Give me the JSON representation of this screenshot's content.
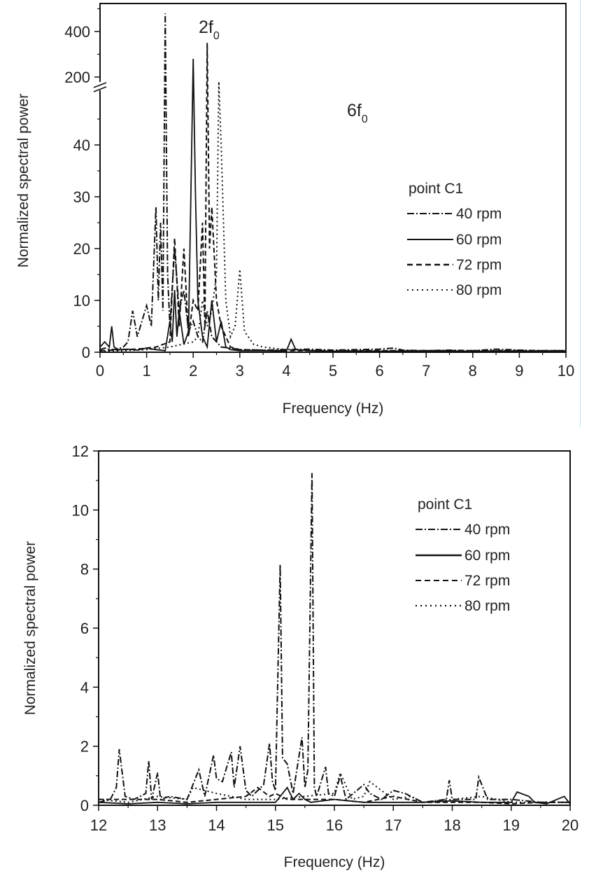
{
  "chart_data": [
    {
      "type": "line",
      "title": "",
      "xlabel": "Frequency (Hz)",
      "ylabel": "Normalized spectral power",
      "xlim": [
        0,
        10
      ],
      "ylim": [
        0,
        500
      ],
      "y_axis_break": {
        "lower_range": [
          0,
          50
        ],
        "upper_range": [
          150,
          500
        ]
      },
      "xticks": [
        "0",
        "1",
        "2",
        "3",
        "4",
        "5",
        "6",
        "7",
        "8",
        "9",
        "10"
      ],
      "yticks_lower": [
        "0",
        "10",
        "20",
        "30",
        "40"
      ],
      "yticks_upper": [
        "200",
        "400"
      ],
      "grid": false,
      "legend_title": "point C1",
      "legend_position": "right-middle",
      "annotations": [
        {
          "text": "2f",
          "sub": "0",
          "x": 2.2,
          "y": 430
        },
        {
          "text": "6f",
          "sub": "0",
          "x": 5.1,
          "y": 45
        }
      ],
      "series": [
        {
          "name": "40 rpm",
          "style": "dash-dot",
          "x": [
            0.0,
            0.1,
            0.2,
            0.3,
            0.4,
            0.5,
            0.6,
            0.7,
            0.8,
            0.9,
            1.0,
            1.1,
            1.2,
            1.25,
            1.3,
            1.35,
            1.4,
            1.45,
            1.5,
            1.6,
            1.7,
            1.8,
            1.9,
            2.0,
            2.1,
            2.2,
            2.3,
            2.4,
            2.5,
            2.6,
            2.8,
            3.0,
            3.5,
            4.0,
            4.5,
            5.0,
            5.5,
            6.0,
            6.3,
            6.5,
            7.0,
            7.5,
            8.0,
            8.5,
            9.0,
            9.5,
            10.0
          ],
          "y": [
            0.5,
            0.8,
            0.6,
            0.5,
            0.7,
            1.0,
            2.0,
            8.0,
            3.0,
            6.0,
            9.0,
            5.0,
            28.0,
            10.0,
            25.0,
            8.0,
            480.0,
            15.0,
            5.0,
            20.0,
            8.0,
            12.0,
            4.0,
            6.0,
            3.0,
            2.0,
            8.0,
            3.0,
            2.0,
            1.0,
            0.8,
            0.5,
            0.4,
            0.5,
            0.6,
            0.4,
            0.5,
            0.6,
            0.8,
            0.4,
            0.3,
            0.4,
            0.3,
            0.6,
            0.4,
            0.3,
            0.3
          ]
        },
        {
          "name": "60 rpm",
          "style": "solid",
          "x": [
            0.0,
            0.1,
            0.2,
            0.25,
            0.3,
            0.4,
            0.6,
            0.8,
            1.0,
            1.2,
            1.4,
            1.5,
            1.55,
            1.6,
            1.65,
            1.7,
            1.8,
            1.9,
            2.0,
            2.05,
            2.1,
            2.2,
            2.3,
            2.4,
            2.5,
            2.6,
            2.7,
            2.8,
            3.0,
            3.5,
            4.0,
            4.1,
            4.2,
            4.5,
            5.0,
            6.0,
            7.0,
            8.0,
            9.0,
            10.0
          ],
          "y": [
            1.0,
            2.0,
            1.0,
            5.0,
            1.0,
            0.5,
            0.6,
            0.4,
            0.8,
            0.5,
            0.3,
            6.0,
            2.0,
            12.0,
            3.0,
            8.0,
            1.5,
            4.0,
            280.0,
            30.0,
            10.0,
            3.0,
            1.0,
            10.0,
            2.0,
            6.0,
            1.0,
            0.5,
            0.3,
            0.3,
            0.2,
            2.5,
            0.5,
            0.3,
            0.2,
            0.2,
            0.2,
            0.2,
            0.2,
            0.2
          ]
        },
        {
          "name": "72 rpm",
          "style": "dashed",
          "x": [
            0.0,
            0.5,
            0.8,
            1.0,
            1.2,
            1.5,
            1.6,
            1.7,
            1.8,
            1.9,
            2.0,
            2.1,
            2.2,
            2.25,
            2.3,
            2.35,
            2.4,
            2.5,
            2.6,
            2.8,
            3.0,
            3.5,
            4.0,
            5.0,
            6.0,
            7.0,
            8.0,
            9.0,
            10.0
          ],
          "y": [
            0.3,
            0.5,
            0.6,
            0.8,
            1.0,
            2.0,
            22.0,
            5.0,
            20.0,
            3.0,
            10.0,
            8.0,
            25.0,
            5.0,
            350.0,
            20.0,
            28.0,
            10.0,
            5.0,
            1.0,
            0.5,
            0.4,
            0.3,
            0.3,
            0.3,
            0.3,
            0.3,
            0.3,
            0.3
          ]
        },
        {
          "name": "80 rpm",
          "style": "dotted",
          "x": [
            0.0,
            0.5,
            1.0,
            1.5,
            2.0,
            2.1,
            2.2,
            2.3,
            2.4,
            2.5,
            2.55,
            2.6,
            2.7,
            2.8,
            2.9,
            3.0,
            3.1,
            3.3,
            3.5,
            4.0,
            5.0,
            6.0,
            7.0,
            8.0,
            9.0,
            10.0
          ],
          "y": [
            0.2,
            0.3,
            0.5,
            1.0,
            2.0,
            3.0,
            10.0,
            5.0,
            8.0,
            15.0,
            180.0,
            40.0,
            10.0,
            3.0,
            5.0,
            16.0,
            4.0,
            1.5,
            1.0,
            0.5,
            0.3,
            0.3,
            0.3,
            0.3,
            0.3,
            0.3
          ]
        }
      ]
    },
    {
      "type": "line",
      "title": "",
      "xlabel": "Frequency (Hz)",
      "ylabel": "Normalized spectral power",
      "xlim": [
        12,
        20
      ],
      "ylim": [
        0,
        12
      ],
      "xticks": [
        "12",
        "13",
        "14",
        "15",
        "16",
        "17",
        "18",
        "19",
        "20"
      ],
      "yticks": [
        "0",
        "2",
        "4",
        "6",
        "8",
        "10",
        "12"
      ],
      "grid": false,
      "legend_title": "point C1",
      "legend_position": "upper-right",
      "series": [
        {
          "name": "40 rpm",
          "style": "dash-dot",
          "x": [
            12.0,
            12.2,
            12.3,
            12.35,
            12.45,
            12.6,
            12.8,
            12.85,
            12.9,
            13.0,
            13.05,
            13.2,
            13.5,
            13.7,
            13.8,
            13.95,
            14.0,
            14.1,
            14.25,
            14.3,
            14.4,
            14.5,
            14.6,
            14.8,
            14.9,
            14.95,
            15.0,
            15.08,
            15.12,
            15.2,
            15.3,
            15.45,
            15.5,
            15.55,
            15.62,
            15.66,
            15.7,
            15.85,
            15.9,
            16.0,
            16.1,
            16.2,
            16.5,
            16.6,
            16.8,
            17.0,
            17.2,
            17.5,
            17.9,
            17.95,
            18.0,
            18.2,
            18.4,
            18.45,
            18.6,
            19.0,
            19.5,
            20.0
          ],
          "y": [
            0.1,
            0.2,
            0.6,
            1.9,
            0.3,
            0.2,
            0.4,
            1.5,
            0.2,
            1.1,
            0.2,
            0.3,
            0.2,
            1.2,
            0.3,
            1.7,
            0.9,
            0.8,
            1.8,
            0.6,
            2.0,
            0.5,
            0.3,
            0.7,
            2.1,
            0.8,
            0.5,
            8.15,
            1.6,
            1.4,
            0.4,
            2.3,
            0.6,
            1.2,
            11.25,
            0.6,
            0.3,
            1.3,
            0.4,
            0.3,
            1.0,
            0.2,
            0.7,
            0.4,
            0.2,
            0.5,
            0.4,
            0.1,
            0.2,
            0.85,
            0.2,
            0.2,
            0.2,
            0.95,
            0.2,
            0.2,
            0.1,
            0.1
          ]
        },
        {
          "name": "60 rpm",
          "style": "solid",
          "x": [
            12.0,
            12.5,
            13.0,
            13.5,
            14.0,
            14.5,
            15.0,
            15.2,
            15.3,
            15.4,
            15.5,
            15.6,
            16.0,
            16.5,
            17.0,
            17.5,
            18.0,
            18.5,
            19.0,
            19.1,
            19.3,
            19.4,
            19.6,
            19.9,
            20.0
          ],
          "y": [
            0.1,
            0.05,
            0.1,
            0.05,
            0.1,
            0.1,
            0.1,
            0.6,
            0.2,
            0.4,
            0.2,
            0.1,
            0.2,
            0.1,
            0.1,
            0.1,
            0.15,
            0.1,
            0.1,
            0.45,
            0.3,
            0.1,
            0.05,
            0.3,
            0.05
          ]
        },
        {
          "name": "72 rpm",
          "style": "dashed",
          "x": [
            12.0,
            12.5,
            13.0,
            13.5,
            14.0,
            14.5,
            14.7,
            14.9,
            15.0,
            15.1,
            15.2,
            15.5,
            16.0,
            16.5,
            17.0,
            17.5,
            18.0,
            18.5,
            19.0,
            19.5,
            20.0
          ],
          "y": [
            0.2,
            0.2,
            0.2,
            0.1,
            0.2,
            0.3,
            0.6,
            0.3,
            0.4,
            0.3,
            0.2,
            0.2,
            0.2,
            0.1,
            0.3,
            0.1,
            0.1,
            0.1,
            0.05,
            0.1,
            0.1
          ]
        },
        {
          "name": "80 rpm",
          "style": "dotted",
          "x": [
            12.0,
            12.5,
            13.0,
            13.5,
            13.6,
            14.0,
            14.5,
            15.0,
            15.5,
            16.0,
            16.1,
            16.3,
            16.5,
            16.6,
            17.0,
            17.3,
            17.5,
            18.0,
            18.5,
            19.0,
            19.5,
            20.0
          ],
          "y": [
            0.2,
            0.1,
            0.3,
            0.2,
            0.6,
            0.4,
            0.2,
            0.2,
            0.3,
            0.4,
            1.1,
            0.2,
            0.3,
            0.8,
            0.2,
            0.3,
            0.1,
            0.2,
            0.3,
            0.1,
            0.1,
            0.1
          ]
        }
      ]
    }
  ],
  "top_chart": {
    "ylabel": "Normalized spectral power",
    "xlabel": "Frequency (Hz)",
    "annotation_2f_main": "2f",
    "annotation_2f_sub": "0",
    "annotation_6f_main": "6f",
    "annotation_6f_sub": "0",
    "legend": {
      "title": "point C1",
      "items": [
        "40 rpm",
        "60 rpm",
        "72 rpm",
        "80 rpm"
      ]
    }
  },
  "bottom_chart": {
    "ylabel": "Normalized spectral power",
    "xlabel": "Frequency (Hz)",
    "legend": {
      "title": "point C1",
      "items": [
        "40 rpm",
        "60 rpm",
        "72 rpm",
        "80 rpm"
      ]
    }
  },
  "styles": {
    "line_color": "#111111",
    "frame_color": "#111111",
    "edge_line_color": "#bfe6f2"
  }
}
